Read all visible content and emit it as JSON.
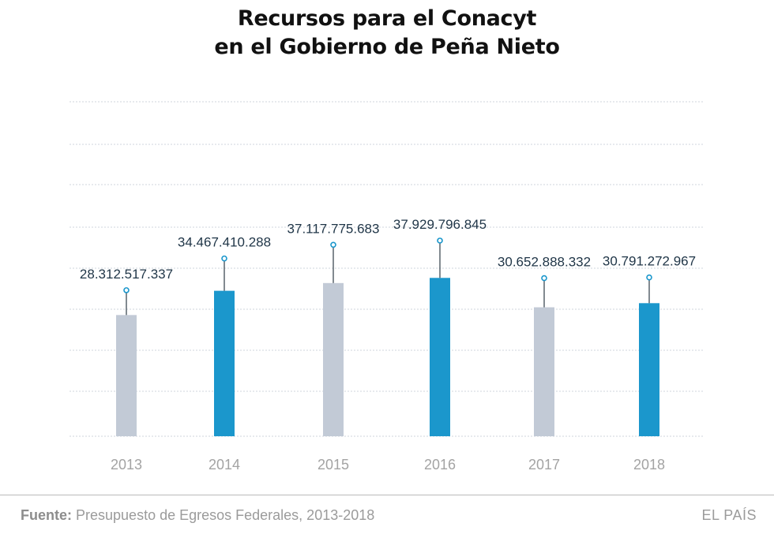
{
  "title_line1": "Recursos para el Conacyt",
  "title_line2": "en el Gobierno de Peña Nieto",
  "footer": {
    "source_label": "Fuente:",
    "source_text": "Presupuesto de Egresos Federales, 2013-2018",
    "brand": "EL PAÍS"
  },
  "colors": {
    "bar_gray": "#c2cad6",
    "bar_blue": "#1b97cc",
    "marker": "#1b97cc",
    "whisker": "#3f4a55",
    "value_text": "#1f3547",
    "year_text": "#a3a3a3",
    "grid": "#cfd5dc"
  },
  "chart_data": {
    "type": "bar",
    "categories": [
      "2013",
      "2014",
      "2015",
      "2016",
      "2017",
      "2018"
    ],
    "values": [
      28312517337,
      34467410288,
      37117775683,
      37929796845,
      30652888332,
      30791272967
    ],
    "value_labels": [
      "28.312.517.337",
      "34.467.410.288",
      "37.117.775.683",
      "37.929.796.845",
      "30.652.888.332",
      "30.791.272.967"
    ],
    "bar_colors": [
      "#c2cad6",
      "#1b97cc",
      "#c2cad6",
      "#1b97cc",
      "#c2cad6",
      "#1b97cc"
    ],
    "bar_values": [
      23500000000,
      28200000000,
      29700000000,
      30700000000,
      25000000000,
      25800000000
    ],
    "ylim": [
      0,
      65000000000
    ],
    "grid": true,
    "title": "Recursos para el Conacyt en el Gobierno de Peña Nieto",
    "xlabel": "",
    "ylabel": ""
  }
}
